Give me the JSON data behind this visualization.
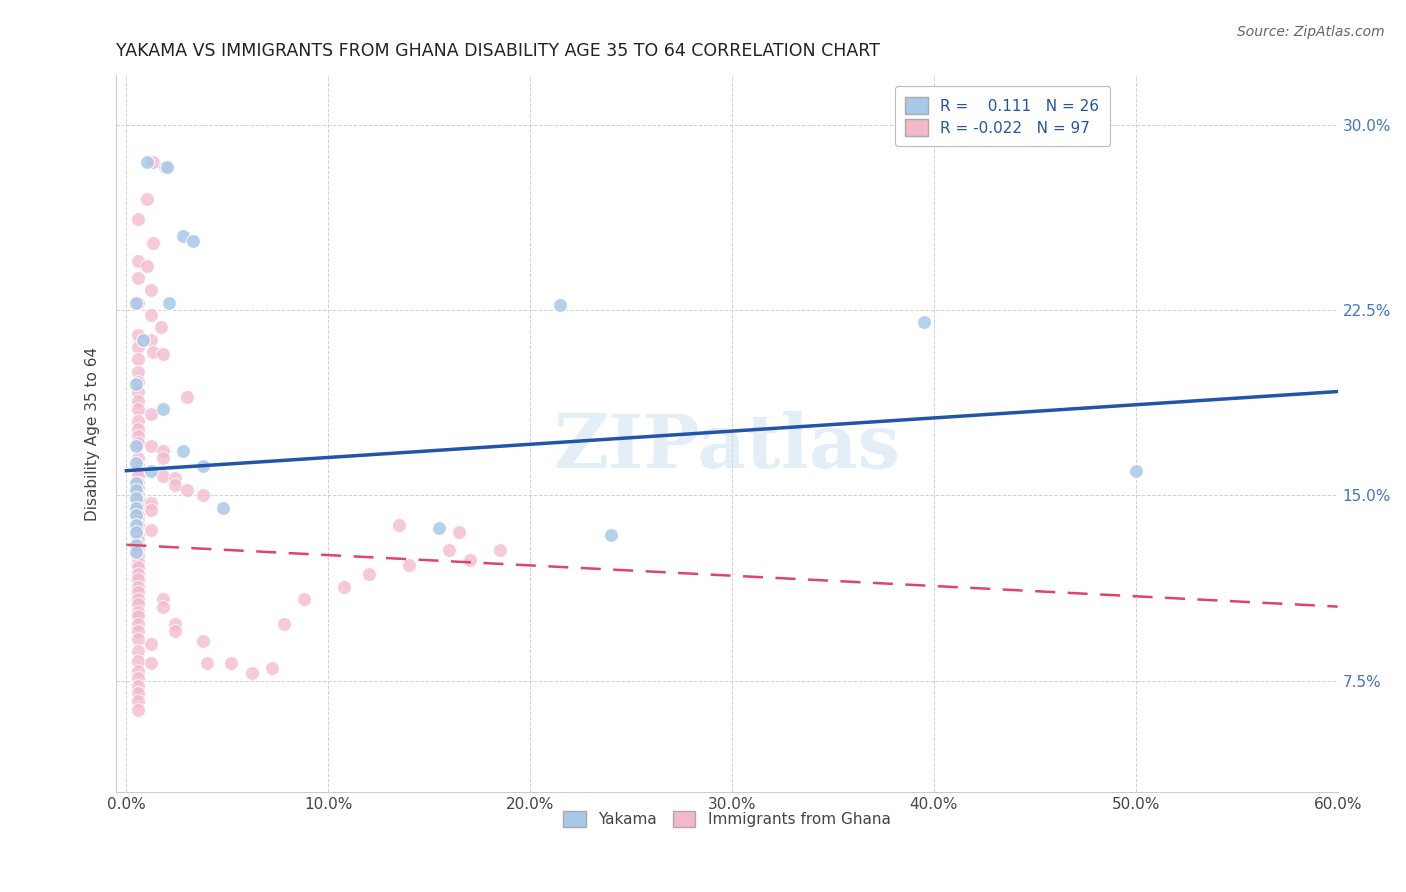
{
  "title": "YAKAMA VS IMMIGRANTS FROM GHANA DISABILITY AGE 35 TO 64 CORRELATION CHART",
  "source": "Source: ZipAtlas.com",
  "xlabel_ticks": [
    "0.0%",
    "10.0%",
    "20.0%",
    "30.0%",
    "40.0%",
    "50.0%",
    "60.0%"
  ],
  "xlabel_vals": [
    0.0,
    0.1,
    0.2,
    0.3,
    0.4,
    0.5,
    0.6
  ],
  "ylabel_ticks": [
    "7.5%",
    "15.0%",
    "22.5%",
    "30.0%"
  ],
  "ylabel_vals": [
    0.075,
    0.15,
    0.225,
    0.3
  ],
  "xlim": [
    -0.005,
    0.6
  ],
  "ylim": [
    0.03,
    0.32
  ],
  "watermark": "ZIPatlas",
  "color_yakama": "#a8c8e8",
  "color_ghana": "#f4b8cc",
  "trendline_yakama_color": "#2255aa",
  "trendline_ghana_color": "#e04466",
  "trendline_yakama_x0": 0.0,
  "trendline_yakama_y0": 0.16,
  "trendline_yakama_x1": 0.6,
  "trendline_yakama_y1": 0.192,
  "trendline_ghana_x0": 0.0,
  "trendline_ghana_y0": 0.13,
  "trendline_ghana_x1": 0.6,
  "trendline_ghana_y1": 0.105,
  "yakama_points": [
    [
      0.01,
      0.285
    ],
    [
      0.02,
      0.283
    ],
    [
      0.028,
      0.255
    ],
    [
      0.033,
      0.253
    ],
    [
      0.005,
      0.228
    ],
    [
      0.021,
      0.228
    ],
    [
      0.008,
      0.213
    ],
    [
      0.005,
      0.195
    ],
    [
      0.018,
      0.185
    ],
    [
      0.005,
      0.17
    ],
    [
      0.005,
      0.163
    ],
    [
      0.012,
      0.16
    ],
    [
      0.005,
      0.155
    ],
    [
      0.005,
      0.152
    ],
    [
      0.005,
      0.149
    ],
    [
      0.005,
      0.145
    ],
    [
      0.005,
      0.142
    ],
    [
      0.005,
      0.138
    ],
    [
      0.005,
      0.135
    ],
    [
      0.005,
      0.13
    ],
    [
      0.005,
      0.127
    ],
    [
      0.028,
      0.168
    ],
    [
      0.038,
      0.162
    ],
    [
      0.048,
      0.145
    ],
    [
      0.215,
      0.227
    ],
    [
      0.395,
      0.22
    ],
    [
      0.5,
      0.16
    ],
    [
      0.155,
      0.137
    ],
    [
      0.24,
      0.134
    ]
  ],
  "ghana_points": [
    [
      0.013,
      0.285
    ],
    [
      0.019,
      0.283
    ],
    [
      0.01,
      0.27
    ],
    [
      0.006,
      0.262
    ],
    [
      0.013,
      0.252
    ],
    [
      0.006,
      0.245
    ],
    [
      0.01,
      0.243
    ],
    [
      0.006,
      0.238
    ],
    [
      0.012,
      0.233
    ],
    [
      0.006,
      0.228
    ],
    [
      0.012,
      0.223
    ],
    [
      0.017,
      0.218
    ],
    [
      0.006,
      0.215
    ],
    [
      0.012,
      0.213
    ],
    [
      0.006,
      0.21
    ],
    [
      0.013,
      0.208
    ],
    [
      0.018,
      0.207
    ],
    [
      0.006,
      0.205
    ],
    [
      0.006,
      0.2
    ],
    [
      0.006,
      0.196
    ],
    [
      0.006,
      0.192
    ],
    [
      0.006,
      0.188
    ],
    [
      0.006,
      0.185
    ],
    [
      0.012,
      0.183
    ],
    [
      0.006,
      0.18
    ],
    [
      0.006,
      0.177
    ],
    [
      0.006,
      0.174
    ],
    [
      0.006,
      0.171
    ],
    [
      0.012,
      0.17
    ],
    [
      0.018,
      0.168
    ],
    [
      0.006,
      0.165
    ],
    [
      0.006,
      0.162
    ],
    [
      0.006,
      0.16
    ],
    [
      0.006,
      0.158
    ],
    [
      0.006,
      0.155
    ],
    [
      0.006,
      0.153
    ],
    [
      0.006,
      0.15
    ],
    [
      0.006,
      0.148
    ],
    [
      0.012,
      0.147
    ],
    [
      0.006,
      0.145
    ],
    [
      0.012,
      0.144
    ],
    [
      0.006,
      0.142
    ],
    [
      0.006,
      0.14
    ],
    [
      0.006,
      0.138
    ],
    [
      0.012,
      0.136
    ],
    [
      0.006,
      0.134
    ],
    [
      0.006,
      0.132
    ],
    [
      0.006,
      0.13
    ],
    [
      0.006,
      0.128
    ],
    [
      0.006,
      0.126
    ],
    [
      0.006,
      0.123
    ],
    [
      0.006,
      0.121
    ],
    [
      0.006,
      0.118
    ],
    [
      0.006,
      0.116
    ],
    [
      0.006,
      0.113
    ],
    [
      0.006,
      0.111
    ],
    [
      0.006,
      0.108
    ],
    [
      0.006,
      0.106
    ],
    [
      0.006,
      0.103
    ],
    [
      0.006,
      0.101
    ],
    [
      0.006,
      0.098
    ],
    [
      0.006,
      0.095
    ],
    [
      0.006,
      0.092
    ],
    [
      0.012,
      0.09
    ],
    [
      0.006,
      0.087
    ],
    [
      0.006,
      0.083
    ],
    [
      0.012,
      0.082
    ],
    [
      0.006,
      0.079
    ],
    [
      0.006,
      0.076
    ],
    [
      0.006,
      0.073
    ],
    [
      0.006,
      0.07
    ],
    [
      0.006,
      0.067
    ],
    [
      0.006,
      0.063
    ],
    [
      0.018,
      0.165
    ],
    [
      0.018,
      0.158
    ],
    [
      0.024,
      0.157
    ],
    [
      0.024,
      0.154
    ],
    [
      0.03,
      0.152
    ],
    [
      0.038,
      0.15
    ],
    [
      0.018,
      0.108
    ],
    [
      0.018,
      0.105
    ],
    [
      0.024,
      0.098
    ],
    [
      0.024,
      0.095
    ],
    [
      0.038,
      0.091
    ],
    [
      0.04,
      0.082
    ],
    [
      0.052,
      0.082
    ],
    [
      0.062,
      0.078
    ],
    [
      0.072,
      0.08
    ],
    [
      0.03,
      0.19
    ],
    [
      0.16,
      0.128
    ],
    [
      0.14,
      0.122
    ],
    [
      0.12,
      0.118
    ],
    [
      0.108,
      0.113
    ],
    [
      0.088,
      0.108
    ],
    [
      0.078,
      0.098
    ],
    [
      0.17,
      0.124
    ],
    [
      0.165,
      0.135
    ],
    [
      0.185,
      0.128
    ],
    [
      0.135,
      0.138
    ]
  ]
}
